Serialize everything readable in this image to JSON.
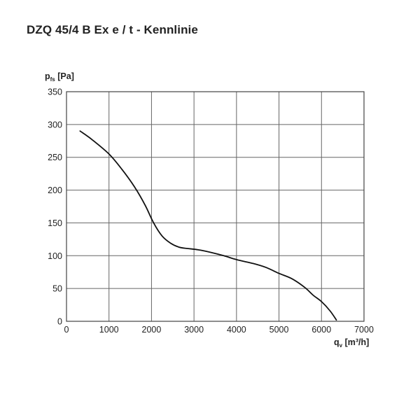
{
  "page": {
    "title": "DZQ 45/4 B Ex e / t - Kennlinie"
  },
  "chart_data": {
    "type": "line",
    "title": "DZQ 45/4 B Ex e / t - Kennlinie",
    "ylabel_main": "p",
    "ylabel_sub": "fs",
    "ylabel_unit": " [Pa]",
    "xlabel_main": "q",
    "xlabel_sub": "v",
    "xlabel_unit": " [m³/h]",
    "xlim": [
      0,
      7000
    ],
    "ylim": [
      0,
      350
    ],
    "xticks": [
      0,
      1000,
      2000,
      3000,
      4000,
      5000,
      6000,
      7000
    ],
    "yticks": [
      0,
      50,
      100,
      150,
      200,
      250,
      300,
      350
    ],
    "grid": true,
    "line_color": "#111111",
    "grid_color": "#666666",
    "series": [
      {
        "x": [
          320,
          600,
          1000,
          1300,
          1600,
          1850,
          2050,
          2250,
          2450,
          2650,
          2850,
          3100,
          3400,
          3700,
          4000,
          4400,
          4700,
          5000,
          5300,
          5600,
          5800,
          6000,
          6200,
          6350
        ],
        "y": [
          290,
          277,
          255,
          232,
          205,
          177,
          150,
          130,
          119,
          113,
          111,
          109,
          105,
          100,
          94,
          88,
          82,
          73,
          65,
          52,
          40,
          30,
          16,
          2
        ]
      }
    ]
  }
}
